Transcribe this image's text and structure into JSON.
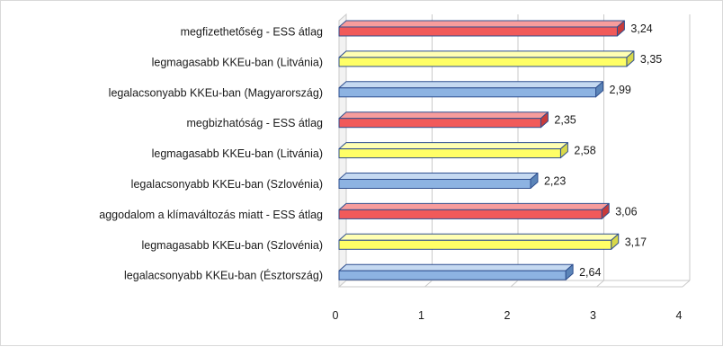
{
  "chart_data": {
    "type": "bar",
    "orientation": "horizontal",
    "three_d": true,
    "categories": [
      "megfizethetőség - ESS átlag",
      "legmagasabb KKEu-ban (Litvánia)",
      "legalacsonyabb KKEu-ban (Magyarország)",
      "megbizhatóság - ESS átlag",
      "legmagasabb KKEu-ban (Litvánia)",
      "legalacsonyabb KKEu-ban (Szlovénia)",
      "aggodalom a klímaváltozás miatt - ESS átlag",
      "legmagasabb KKEu-ban (Szlovénia)",
      "legalacsonyabb KKEu-ban (Észtország)"
    ],
    "values": [
      3.24,
      3.35,
      2.99,
      2.35,
      2.58,
      2.23,
      3.06,
      3.17,
      2.64
    ],
    "value_labels": [
      "3,24",
      "3,35",
      "2,99",
      "2,35",
      "2,58",
      "2,23",
      "3,06",
      "3,17",
      "2,64"
    ],
    "bar_colors": [
      "red",
      "yellow",
      "blue",
      "red",
      "yellow",
      "blue",
      "red",
      "yellow",
      "blue"
    ],
    "xlim": [
      0,
      4
    ],
    "xticks": [
      "0",
      "1",
      "2",
      "3",
      "4"
    ],
    "grid": true,
    "legend": "none"
  },
  "colors": {
    "red": {
      "front": "#f15a5a",
      "top": "#f79c9c",
      "side": "#c73b3b"
    },
    "yellow": {
      "front": "#ffff66",
      "top": "#ffffb3",
      "side": "#d8d84a"
    },
    "blue": {
      "front": "#8db3e2",
      "top": "#c5d9f1",
      "side": "#5b84b8"
    },
    "outline": "#2f4f8f",
    "grid": "#c9c9c9"
  }
}
